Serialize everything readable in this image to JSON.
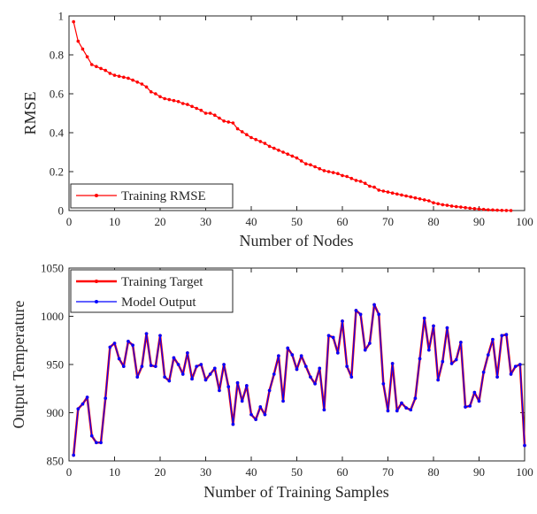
{
  "chart_data": [
    {
      "type": "line",
      "title": "",
      "xlabel": "Number of Nodes",
      "ylabel": "RMSE",
      "xlim": [
        0,
        100
      ],
      "ylim": [
        0,
        1
      ],
      "xticks": [
        "0",
        "10",
        "20",
        "30",
        "40",
        "50",
        "60",
        "70",
        "80",
        "90",
        "100"
      ],
      "yticks": [
        "0",
        "0.2",
        "0.4",
        "0.6",
        "0.8",
        "1"
      ],
      "grid": false,
      "legend_position": "bottom-left",
      "series": [
        {
          "name": "Training RMSE",
          "color": "#ff0000",
          "x": [
            1,
            2,
            3,
            4,
            5,
            6,
            7,
            8,
            9,
            10,
            11,
            12,
            13,
            14,
            15,
            16,
            17,
            18,
            19,
            20,
            21,
            22,
            23,
            24,
            25,
            26,
            27,
            28,
            29,
            30,
            31,
            32,
            33,
            34,
            35,
            36,
            37,
            38,
            39,
            40,
            41,
            42,
            43,
            44,
            45,
            46,
            47,
            48,
            49,
            50,
            51,
            52,
            53,
            54,
            55,
            56,
            57,
            58,
            59,
            60,
            61,
            62,
            63,
            64,
            65,
            66,
            67,
            68,
            69,
            70,
            71,
            72,
            73,
            74,
            75,
            76,
            77,
            78,
            79,
            80,
            81,
            82,
            83,
            84,
            85,
            86,
            87,
            88,
            89,
            90,
            91,
            92,
            93,
            94,
            95,
            96,
            97
          ],
          "values": [
            0.97,
            0.87,
            0.83,
            0.79,
            0.75,
            0.74,
            0.73,
            0.72,
            0.705,
            0.695,
            0.69,
            0.685,
            0.68,
            0.67,
            0.66,
            0.65,
            0.635,
            0.61,
            0.6,
            0.585,
            0.575,
            0.57,
            0.565,
            0.56,
            0.55,
            0.545,
            0.535,
            0.525,
            0.515,
            0.5,
            0.5,
            0.49,
            0.475,
            0.46,
            0.455,
            0.45,
            0.42,
            0.405,
            0.39,
            0.375,
            0.365,
            0.355,
            0.345,
            0.33,
            0.32,
            0.31,
            0.3,
            0.29,
            0.28,
            0.27,
            0.255,
            0.24,
            0.235,
            0.225,
            0.215,
            0.205,
            0.2,
            0.195,
            0.19,
            0.18,
            0.175,
            0.165,
            0.155,
            0.15,
            0.14,
            0.125,
            0.12,
            0.105,
            0.1,
            0.095,
            0.09,
            0.085,
            0.08,
            0.075,
            0.07,
            0.065,
            0.06,
            0.055,
            0.05,
            0.04,
            0.035,
            0.03,
            0.027,
            0.023,
            0.02,
            0.018,
            0.015,
            0.012,
            0.01,
            0.008,
            0.006,
            0.004,
            0.003,
            0.002,
            0.001,
            0.0005,
            0.0
          ]
        }
      ]
    },
    {
      "type": "line",
      "title": "",
      "xlabel": "Number of Training Samples",
      "ylabel": "Output Temperature",
      "xlim": [
        0,
        100
      ],
      "ylim": [
        850,
        1050
      ],
      "xticks": [
        "0",
        "10",
        "20",
        "30",
        "40",
        "50",
        "60",
        "70",
        "80",
        "90",
        "100"
      ],
      "yticks": [
        "850",
        "900",
        "950",
        "1000",
        "1050"
      ],
      "grid": false,
      "legend_position": "top-left",
      "series": [
        {
          "name": "Training Target",
          "color": "#ff0000",
          "values": [
            856,
            904,
            909,
            916,
            876,
            869,
            869,
            915,
            968,
            972,
            956,
            948,
            974,
            970,
            937,
            948,
            982,
            949,
            948,
            980,
            937,
            933,
            957,
            950,
            940,
            962,
            935,
            948,
            950,
            934,
            940,
            946,
            923,
            950,
            927,
            888,
            931,
            912,
            928,
            898,
            893,
            906,
            898,
            923,
            940,
            959,
            912,
            967,
            960,
            945,
            959,
            948,
            937,
            930,
            946,
            903,
            980,
            978,
            962,
            995,
            948,
            937,
            1006,
            1002,
            965,
            972,
            1012,
            1002,
            930,
            902,
            951,
            902,
            910,
            905,
            903,
            915,
            956,
            998,
            965,
            990,
            934,
            953,
            988,
            951,
            955,
            973,
            906,
            907,
            921,
            912,
            942,
            960,
            976,
            937,
            980,
            981,
            940,
            948,
            950,
            866
          ]
        },
        {
          "name": "Model Output",
          "color": "#0000ff",
          "values": [
            856,
            904,
            909,
            916,
            876,
            869,
            869,
            915,
            968,
            972,
            956,
            948,
            974,
            970,
            937,
            948,
            982,
            949,
            948,
            980,
            937,
            933,
            957,
            950,
            940,
            962,
            935,
            948,
            950,
            934,
            940,
            946,
            923,
            950,
            927,
            888,
            931,
            912,
            928,
            898,
            893,
            906,
            898,
            923,
            940,
            959,
            912,
            967,
            960,
            945,
            959,
            948,
            937,
            930,
            946,
            903,
            980,
            978,
            962,
            995,
            948,
            937,
            1006,
            1002,
            965,
            972,
            1012,
            1002,
            930,
            902,
            951,
            902,
            910,
            905,
            903,
            915,
            956,
            998,
            965,
            990,
            934,
            953,
            988,
            951,
            955,
            973,
            906,
            907,
            921,
            912,
            942,
            960,
            976,
            937,
            980,
            981,
            940,
            948,
            950,
            866
          ]
        }
      ]
    }
  ]
}
